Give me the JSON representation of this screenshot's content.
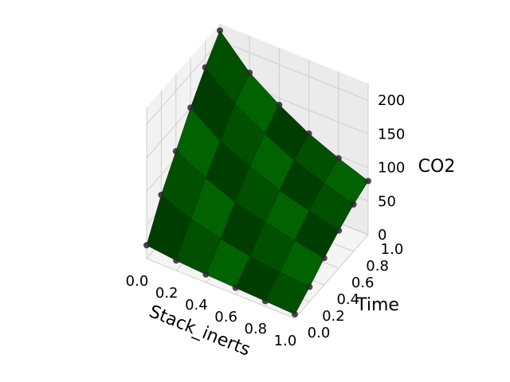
{
  "chart_data": {
    "type": "surface3d",
    "title": "",
    "xlabel": "Stack_inerts",
    "ylabel": "Time",
    "zlabel": "CO2",
    "xlim": [
      0,
      1
    ],
    "ylim": [
      0,
      1
    ],
    "zlim": [
      0,
      225
    ],
    "x_ticks": [
      "0.0",
      "0.2",
      "0.4",
      "0.6",
      "0.8",
      "1.0"
    ],
    "y_ticks": [
      "0.0",
      "0.2",
      "0.4",
      "0.6",
      "0.8",
      "1.0"
    ],
    "z_ticks": [
      "0",
      "50",
      "100",
      "150",
      "200"
    ],
    "grid": true,
    "surface_color": "#0a7a0a",
    "surface_edge_color": "#033803",
    "marker_color": "#2a2a2a",
    "x": [
      0,
      0.2,
      0.4,
      0.6,
      0.8,
      1.0
    ],
    "y": [
      0,
      0.2,
      0.4,
      0.6,
      0.8,
      1.0
    ],
    "z": [
      [
        20,
        70,
        110,
        150,
        185,
        215
      ],
      [
        15,
        52,
        88,
        118,
        148,
        170
      ],
      [
        12,
        40,
        70,
        98,
        122,
        140
      ],
      [
        10,
        32,
        58,
        80,
        100,
        115
      ],
      [
        8,
        26,
        48,
        68,
        84,
        96
      ],
      [
        6,
        22,
        40,
        56,
        70,
        80
      ]
    ]
  }
}
